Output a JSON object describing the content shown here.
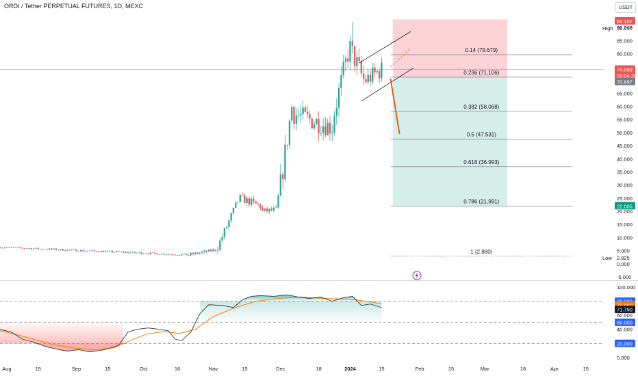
{
  "header": {
    "title": "ORDI / Tether PERPETUAL FUTURES, 1D, MEXC",
    "currency_button": "USDT"
  },
  "chart_data": {
    "type": "candlestick",
    "symbol": "ORDI / Tether PERPETUAL FUTURES",
    "interval": "1D",
    "exchange": "MEXC",
    "colors": {
      "up": "#26a69a",
      "down": "#ef5350",
      "line_orange": "#f57c00",
      "osc_black": "#333333",
      "current": "#ef5350"
    },
    "x_axis": {
      "start": "2023-07-29",
      "end": "2024-04-23",
      "tick_labels": [
        {
          "date": "2023-08-01",
          "label": "Aug"
        },
        {
          "date": "2023-08-15",
          "label": "15"
        },
        {
          "date": "2023-09-01",
          "label": "Sep"
        },
        {
          "date": "2023-09-15",
          "label": "15"
        },
        {
          "date": "2023-10-01",
          "label": "Oct"
        },
        {
          "date": "2023-10-16",
          "label": "16"
        },
        {
          "date": "2023-11-01",
          "label": "Nov"
        },
        {
          "date": "2023-11-15",
          "label": "15"
        },
        {
          "date": "2023-12-01",
          "label": "Dec"
        },
        {
          "date": "2023-12-18",
          "label": "18"
        },
        {
          "date": "2024-01-01",
          "label": "2024"
        },
        {
          "date": "2024-01-15",
          "label": "15"
        },
        {
          "date": "2024-02-01",
          "label": "Feb"
        },
        {
          "date": "2024-02-15",
          "label": "15"
        },
        {
          "date": "2024-03-01",
          "label": "Mar"
        },
        {
          "date": "2024-03-18",
          "label": "18"
        },
        {
          "date": "2024-04-01",
          "label": "Apr"
        },
        {
          "date": "2024-04-15",
          "label": "15"
        }
      ]
    },
    "price_axis": {
      "range": [
        -5,
        94
      ],
      "ticks": [
        "90.000",
        "85.000",
        "80.000",
        "75.000",
        "70.000",
        "65.000",
        "60.000",
        "55.000",
        "50.000",
        "45.000",
        "40.000",
        "35.000",
        "30.000",
        "25.000",
        "20.000",
        "15.000",
        "10.000",
        "5.000",
        "0.000",
        "-5.000"
      ]
    },
    "price_labels": {
      "high_text": "High",
      "high_values": [
        "93.107",
        "92.213"
      ],
      "current": "74.068",
      "countdown": "09:04:28",
      "entry": "70.897",
      "target": "22.005",
      "low_text": "Low",
      "low_value": "2.825"
    },
    "candle_segments": [
      {
        "start": "2023-07-29",
        "end": "2023-10-20",
        "from": 6.3,
        "to": 3.4,
        "noise": 0.35
      },
      {
        "start": "2023-10-21",
        "end": "2023-11-02",
        "from": 3.4,
        "to": 5.3,
        "noise": 0.6
      },
      {
        "start": "2023-11-03",
        "end": "2023-11-12",
        "from": 6.5,
        "to": 24.0,
        "noise": 1.6
      },
      {
        "start": "2023-11-13",
        "end": "2023-11-22",
        "from": 25.0,
        "to": 22.0,
        "noise": 1.5
      },
      {
        "start": "2023-11-23",
        "end": "2023-11-29",
        "from": 20.0,
        "to": 20.5,
        "noise": 1.2
      },
      {
        "start": "2023-11-30",
        "end": "2023-12-06",
        "from": 24.0,
        "to": 60.0,
        "noise": 4.5
      },
      {
        "start": "2023-12-07",
        "end": "2023-12-24",
        "from": 57.0,
        "to": 52.0,
        "noise": 4.0
      },
      {
        "start": "2023-12-25",
        "end": "2023-12-31",
        "from": 58.0,
        "to": 80.0,
        "noise": 4.5
      },
      {
        "start": "2024-01-01",
        "end": "2024-01-07",
        "from": 82.0,
        "to": 70.0,
        "noise": 4.5
      },
      {
        "start": "2024-01-08",
        "end": "2024-01-15",
        "from": 70.0,
        "to": 74.0,
        "noise": 3.5
      }
    ],
    "peak_wick": {
      "date": "2024-01-02",
      "high": 92.2
    },
    "fibonacci": {
      "start": "2024-01-19",
      "end": "2024-04-09",
      "levels": [
        {
          "label": "0.14 (79.679)",
          "value": 79.679,
          "style": "solid"
        },
        {
          "label": "0.236 (71.106)",
          "value": 71.106,
          "style": "solid"
        },
        {
          "label": "0.382 (58.068)",
          "value": 58.068,
          "style": "solid"
        },
        {
          "label": "0.5 (47.531)",
          "value": 47.531,
          "style": "solid"
        },
        {
          "label": "0.618 (36.993)",
          "value": 36.993,
          "style": "solid"
        },
        {
          "label": "0.786 (21.991)",
          "value": 21.991,
          "style": "solid"
        },
        {
          "label": "1 (2.880)",
          "value": 2.88,
          "style": "dotted"
        }
      ]
    },
    "position": {
      "start": "2024-01-20",
      "end": "2024-03-11",
      "entry": 70.897,
      "stop": 93.107,
      "target": 22.005,
      "stop_color": "rgba(242,54,69,0.22)",
      "target_color": "rgba(8,153,129,0.17)"
    },
    "horizontal_line": {
      "value": 74.068,
      "color": "#f23645"
    },
    "channel": {
      "upper": [
        {
          "date": "2024-01-05",
          "value": 76.5
        },
        {
          "date": "2024-01-28",
          "value": 88.5
        }
      ],
      "lower": [
        {
          "date": "2024-01-06",
          "value": 62.0
        },
        {
          "date": "2024-01-29",
          "value": 74.5
        }
      ],
      "projection": [
        {
          "date": "2024-01-19",
          "value": 75.0
        },
        {
          "date": "2024-01-28",
          "value": 82.0
        }
      ]
    },
    "projection_arrow": {
      "from": {
        "date": "2024-01-19",
        "value": 70.5
      },
      "to": {
        "date": "2024-01-23",
        "value": 49.5
      },
      "color": "#e65100"
    },
    "oscillator": {
      "range": [
        -5,
        102
      ],
      "ticks": [
        "100.000",
        "80.000",
        "60.000",
        "40.000",
        "20.000",
        "0.000"
      ],
      "levels": [
        80,
        50,
        20
      ],
      "labels": {
        "upper": "80.000",
        "middle": "50.000",
        "lower": "20.000",
        "signal": "75.960",
        "current": "71.790"
      },
      "colors": {
        "upper": "#2962ff",
        "middle": "#2962ff",
        "lower": "#2962ff",
        "signal": "#f57c00",
        "current": "#131722"
      },
      "main": [
        {
          "date": "2023-07-29",
          "value": 40
        },
        {
          "date": "2023-08-03",
          "value": 36
        },
        {
          "date": "2023-08-08",
          "value": 26
        },
        {
          "date": "2023-08-13",
          "value": 22
        },
        {
          "date": "2023-08-18",
          "value": 16
        },
        {
          "date": "2023-08-23",
          "value": 12
        },
        {
          "date": "2023-08-28",
          "value": 9
        },
        {
          "date": "2023-09-02",
          "value": 11
        },
        {
          "date": "2023-09-07",
          "value": 8
        },
        {
          "date": "2023-09-12",
          "value": 10
        },
        {
          "date": "2023-09-17",
          "value": 14
        },
        {
          "date": "2023-09-20",
          "value": 18
        },
        {
          "date": "2023-09-24",
          "value": 36
        },
        {
          "date": "2023-09-28",
          "value": 40
        },
        {
          "date": "2023-10-03",
          "value": 42
        },
        {
          "date": "2023-10-08",
          "value": 40
        },
        {
          "date": "2023-10-12",
          "value": 38
        },
        {
          "date": "2023-10-15",
          "value": 26
        },
        {
          "date": "2023-10-18",
          "value": 24
        },
        {
          "date": "2023-10-22",
          "value": 36
        },
        {
          "date": "2023-10-26",
          "value": 62
        },
        {
          "date": "2023-10-30",
          "value": 75
        },
        {
          "date": "2023-11-05",
          "value": 74
        },
        {
          "date": "2023-11-10",
          "value": 71
        },
        {
          "date": "2023-11-14",
          "value": 82
        },
        {
          "date": "2023-11-18",
          "value": 87
        },
        {
          "date": "2023-11-22",
          "value": 88
        },
        {
          "date": "2023-11-28",
          "value": 87
        },
        {
          "date": "2023-12-04",
          "value": 89
        },
        {
          "date": "2023-12-09",
          "value": 86
        },
        {
          "date": "2023-12-14",
          "value": 84
        },
        {
          "date": "2023-12-19",
          "value": 86
        },
        {
          "date": "2023-12-24",
          "value": 80
        },
        {
          "date": "2023-12-29",
          "value": 85
        },
        {
          "date": "2024-01-02",
          "value": 87
        },
        {
          "date": "2024-01-06",
          "value": 74
        },
        {
          "date": "2024-01-10",
          "value": 76
        },
        {
          "date": "2024-01-15",
          "value": 71
        }
      ],
      "signal": [
        {
          "date": "2023-07-29",
          "value": 38
        },
        {
          "date": "2023-08-06",
          "value": 32
        },
        {
          "date": "2023-08-14",
          "value": 25
        },
        {
          "date": "2023-08-22",
          "value": 18
        },
        {
          "date": "2023-09-01",
          "value": 13
        },
        {
          "date": "2023-09-10",
          "value": 11
        },
        {
          "date": "2023-09-18",
          "value": 14
        },
        {
          "date": "2023-09-25",
          "value": 24
        },
        {
          "date": "2023-10-02",
          "value": 33
        },
        {
          "date": "2023-10-10",
          "value": 37
        },
        {
          "date": "2023-10-17",
          "value": 34
        },
        {
          "date": "2023-10-24",
          "value": 40
        },
        {
          "date": "2023-11-01",
          "value": 58
        },
        {
          "date": "2023-11-10",
          "value": 70
        },
        {
          "date": "2023-11-20",
          "value": 80
        },
        {
          "date": "2023-11-30",
          "value": 84
        },
        {
          "date": "2023-12-10",
          "value": 86
        },
        {
          "date": "2023-12-20",
          "value": 84
        },
        {
          "date": "2024-01-01",
          "value": 83
        },
        {
          "date": "2024-01-10",
          "value": 79
        },
        {
          "date": "2024-01-15",
          "value": 76
        }
      ]
    }
  }
}
